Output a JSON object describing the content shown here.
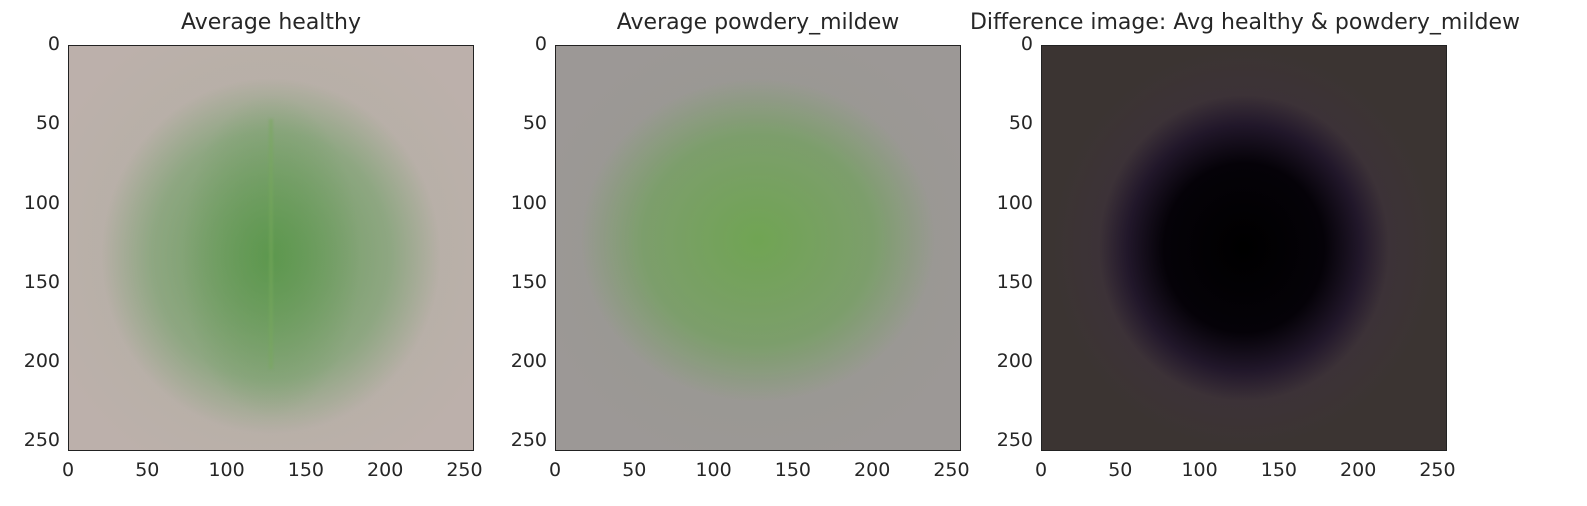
{
  "chart_data": [
    {
      "type": "heatmap",
      "title": "Average healthy",
      "xlabel": "",
      "ylabel": "",
      "xlim": [
        0,
        256
      ],
      "ylim": [
        256,
        0
      ],
      "xticks": [
        "0",
        "50",
        "100",
        "150",
        "200",
        "250"
      ],
      "yticks": [
        "0",
        "50",
        "100",
        "150",
        "200",
        "250"
      ],
      "grid": false
    },
    {
      "type": "heatmap",
      "title": "Average powdery_mildew",
      "xlabel": "",
      "ylabel": "",
      "xlim": [
        0,
        256
      ],
      "ylim": [
        256,
        0
      ],
      "xticks": [
        "0",
        "50",
        "100",
        "150",
        "200",
        "250"
      ],
      "yticks": [
        "0",
        "50",
        "100",
        "150",
        "200",
        "250"
      ],
      "grid": false
    },
    {
      "type": "heatmap",
      "title": "Difference image: Avg healthy & powdery_mildew",
      "xlabel": "",
      "ylabel": "",
      "xlim": [
        0,
        256
      ],
      "ylim": [
        256,
        0
      ],
      "xticks": [
        "0",
        "50",
        "100",
        "150",
        "200",
        "250"
      ],
      "yticks": [
        "0",
        "50",
        "100",
        "150",
        "200",
        "250"
      ],
      "grid": false
    }
  ]
}
